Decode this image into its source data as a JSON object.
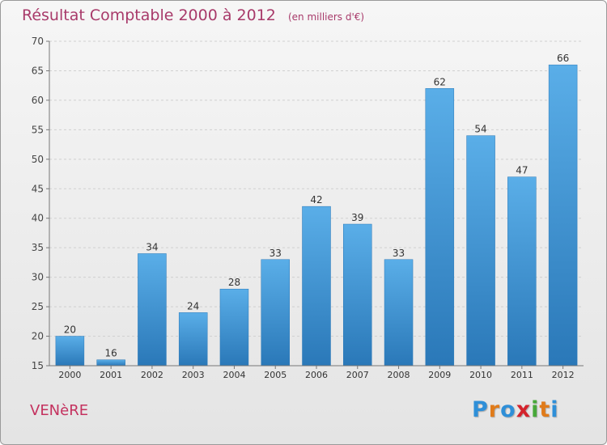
{
  "chart_data": {
    "type": "bar",
    "title": "Résultat Comptable 2000 à 2012",
    "unit": "(en milliers d'€)",
    "categories": [
      "2000",
      "2001",
      "2002",
      "2003",
      "2004",
      "2005",
      "2006",
      "2007",
      "2008",
      "2009",
      "2010",
      "2011",
      "2012"
    ],
    "values": [
      20,
      16,
      34,
      24,
      28,
      33,
      42,
      39,
      33,
      62,
      54,
      47,
      66
    ],
    "ylim": [
      15,
      70
    ],
    "yticks": [
      15,
      20,
      25,
      30,
      35,
      40,
      45,
      50,
      55,
      60,
      65,
      70
    ],
    "grid": true,
    "bar_color": "#3d93d4",
    "xlabel": "",
    "ylabel": ""
  },
  "footer": {
    "commune": "VENèRE",
    "logo_letters": [
      "P",
      "r",
      "o",
      "x",
      "i",
      "t",
      "i"
    ],
    "logo_colors": [
      "#2e8fd8",
      "#e07b1a",
      "#2e8fd8",
      "#d4232c",
      "#48a83a",
      "#e07b1a",
      "#2e8fd8"
    ]
  }
}
